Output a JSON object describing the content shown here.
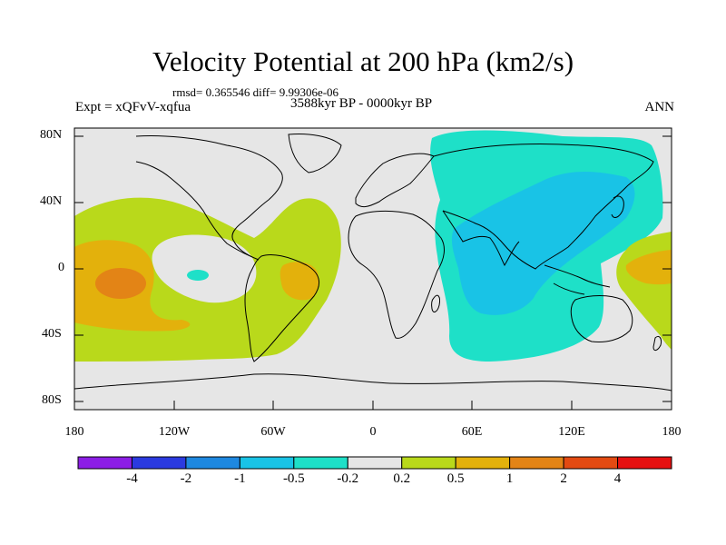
{
  "title": "Velocity Potential at 200 hPa (km2/s)",
  "stats": "rmsd= 0.365546 diff= 9.99306e-06",
  "experiment": "Expt = xQFvV-xqfua",
  "period": "3588kyr BP - 0000kyr BP",
  "season": "ANN",
  "lat_labels": [
    "80N",
    "40N",
    "0",
    "40S",
    "80S"
  ],
  "lon_labels": [
    "180",
    "120W",
    "60W",
    "0",
    "60E",
    "120E",
    "180"
  ],
  "colorbar": {
    "colors": [
      "#8c1ee6",
      "#2b3ae0",
      "#1e88e0",
      "#19c3e6",
      "#1ee0c8",
      "#e6e6e6",
      "#b9d91b",
      "#e3b10c",
      "#e38416",
      "#e34a12",
      "#e61010"
    ],
    "labels": [
      "-4",
      "-2",
      "-1",
      "-0.5",
      "-0.2",
      "0.2",
      "0.5",
      "1",
      "2",
      "4"
    ]
  },
  "colors": {
    "background": "#e6e6e6",
    "pos_weak": "#b9d91b",
    "pos_mid": "#e3b10c",
    "pos_strong": "#e38416",
    "neg_weak": "#1ee0c8",
    "neg_mid": "#19c3e6",
    "coast": "#000000"
  }
}
